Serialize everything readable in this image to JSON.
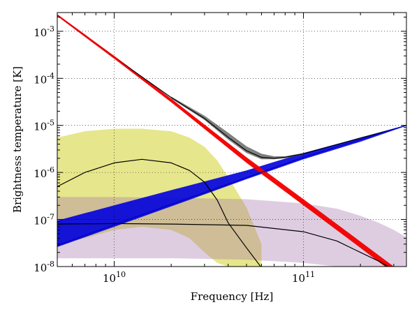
{
  "chart_data": {
    "type": "line",
    "title": "",
    "xlabel": "Frequency [Hz]",
    "ylabel": "Brightness temperature [K]",
    "x_scale": "log",
    "y_scale": "log",
    "xlim": [
      5000000000,
      350000000000
    ],
    "ylim": [
      1e-08,
      0.0025
    ],
    "grid": true,
    "legend": "none",
    "x_ticks": [
      {
        "value": 10000000000,
        "base": "10",
        "exp": "10"
      },
      {
        "value": 100000000000,
        "base": "10",
        "exp": "11"
      }
    ],
    "y_ticks": [
      {
        "value": 0.001,
        "base": "10",
        "exp": "-3"
      },
      {
        "value": 0.0001,
        "base": "10",
        "exp": "-4"
      },
      {
        "value": 1e-05,
        "base": "10",
        "exp": "-5"
      },
      {
        "value": 1e-06,
        "base": "10",
        "exp": "-6"
      },
      {
        "value": 1e-07,
        "base": "10",
        "exp": "-7"
      },
      {
        "value": 1e-08,
        "base": "10",
        "exp": "-8"
      }
    ],
    "series": [
      {
        "color": "#000000",
        "x": [
          5000000000.0,
          10000000000.0,
          20000000000.0,
          30000000000.0,
          40000000000.0,
          50000000000.0,
          60000000000.0,
          70000000000.0,
          80000000000.0,
          100000000000.0,
          150000000000.0,
          200000000000.0,
          300000000000.0,
          350000000000.0
        ],
        "y": [
          0.0022,
          0.00028,
          3.9e-05,
          1.4e-05,
          5.6e-06,
          2.9e-06,
          2.1e-06,
          2e-06,
          2.1e-06,
          2.5e-06,
          3.9e-06,
          5.4e-06,
          8.3e-06,
          1e-05
        ]
      },
      {
        "color": "#ff0000",
        "x": [
          5000000000.0,
          10000000000.0,
          20000000000.0,
          50000000000.0,
          100000000000.0,
          200000000000.0,
          300000000000.0,
          350000000000.0
        ],
        "y": [
          0.0022,
          0.00028,
          3.4e-05,
          1.8e-06,
          2.3e-07,
          2.9e-08,
          8.5e-09,
          5.5e-09
        ]
      },
      {
        "color": "#0000cc",
        "x": [
          5000000000.0,
          10000000000.0,
          20000000000.0,
          50000000000.0,
          100000000000.0,
          200000000000.0,
          350000000000.0
        ],
        "y": [
          2.8e-08,
          7.8e-08,
          2.1e-07,
          7.8e-07,
          2.1e-06,
          5e-06,
          1e-05
        ]
      },
      {
        "color": "#000000",
        "x": [
          5000000000.0,
          7000000000.0,
          10000000000.0,
          14000000000.0,
          20000000000.0,
          25000000000.0,
          30000000000.0,
          35000000000.0,
          40000000000.0,
          50000000000.0,
          60000000000.0
        ],
        "y": [
          5e-07,
          1e-06,
          1.6e-06,
          1.9e-06,
          1.6e-06,
          1.1e-06,
          6.2e-07,
          2.6e-07,
          8.5e-08,
          2.5e-08,
          9.5e-09
        ]
      },
      {
        "color": "#000000",
        "x": [
          5000000000.0,
          10000000000.0,
          20000000000.0,
          50000000000.0,
          100000000000.0,
          150000000000.0,
          200000000000.0,
          250000000000.0,
          300000000000.0
        ],
        "y": [
          8e-08,
          8.2e-08,
          8e-08,
          7.5e-08,
          5.5e-08,
          3.5e-08,
          2e-08,
          1.3e-08,
          8.5e-09
        ]
      }
    ],
    "bands": [
      {
        "color": "#c8c800",
        "opacity": 0.45,
        "x": [
          5000000000.0,
          7000000000.0,
          10000000000.0,
          14000000000.0,
          20000000000.0,
          25000000000.0,
          30000000000.0,
          35000000000.0,
          40000000000.0,
          50000000000.0,
          60000000000.0
        ],
        "y_upper": [
          5.5e-06,
          7.5e-06,
          8.5e-06,
          8.5e-06,
          7.5e-06,
          5.5e-06,
          3.5e-06,
          1.8e-06,
          8e-07,
          1.8e-07,
          3e-08
        ],
        "y_lower": [
          3e-08,
          4e-08,
          6e-08,
          7e-08,
          6e-08,
          4e-08,
          2e-08,
          1.2e-08,
          1e-08,
          1e-08,
          1e-08
        ]
      },
      {
        "color": "#a070a8",
        "opacity": 0.35,
        "x": [
          5000000000.0,
          10000000000.0,
          20000000000.0,
          50000000000.0,
          100000000000.0,
          150000000000.0,
          200000000000.0,
          250000000000.0,
          300000000000.0,
          350000000000.0
        ],
        "y_upper": [
          3e-07,
          3e-07,
          2.9e-07,
          2.7e-07,
          2.2e-07,
          1.7e-07,
          1.2e-07,
          8.5e-08,
          6e-08,
          4.2e-08
        ],
        "y_lower": [
          1.5e-08,
          1.5e-08,
          1.5e-08,
          1.4e-08,
          1.2e-08,
          1e-08,
          1e-08,
          1e-08,
          1e-08,
          1e-08
        ]
      },
      {
        "color": "#0000dd",
        "opacity": 0.9,
        "x": [
          5000000000.0,
          10000000000.0,
          20000000000.0,
          50000000000.0,
          100000000000.0,
          200000000000.0,
          350000000000.0
        ],
        "y_upper": [
          9.5e-08,
          2e-07,
          4.2e-07,
          1.1e-06,
          2.6e-06,
          5.5e-06,
          1.02e-05
        ],
        "y_lower": [
          2.6e-08,
          7e-08,
          1.9e-07,
          7.2e-07,
          1.9e-06,
          4.5e-06,
          9.8e-06
        ]
      },
      {
        "color": "#555555",
        "opacity": 0.75,
        "x": [
          20000000000.0,
          30000000000.0,
          40000000000.0,
          50000000000.0,
          60000000000.0,
          70000000000.0,
          80000000000.0,
          100000000000.0
        ],
        "y_upper": [
          4.1e-05,
          1.6e-05,
          7e-06,
          3.6e-06,
          2.5e-06,
          2.2e-06,
          2.2e-06,
          2.6e-06
        ],
        "y_lower": [
          3.7e-05,
          1.3e-05,
          5e-06,
          2.6e-06,
          1.9e-06,
          1.9e-06,
          2e-06,
          2.4e-06
        ]
      },
      {
        "color": "#ee0000",
        "opacity": 0.95,
        "x": [
          5000000000.0,
          10000000000.0,
          20000000000.0,
          50000000000.0,
          100000000000.0,
          200000000000.0,
          300000000000.0,
          350000000000.0
        ],
        "y_upper": [
          0.0023,
          0.0003,
          3.7e-05,
          2.1e-06,
          2.7e-07,
          3.4e-08,
          1e-08,
          6.8e-09
        ],
        "y_lower": [
          0.0021,
          0.00026,
          3.1e-05,
          1.6e-06,
          2e-07,
          2.5e-08,
          7.2e-09,
          4.5e-09
        ]
      }
    ]
  }
}
